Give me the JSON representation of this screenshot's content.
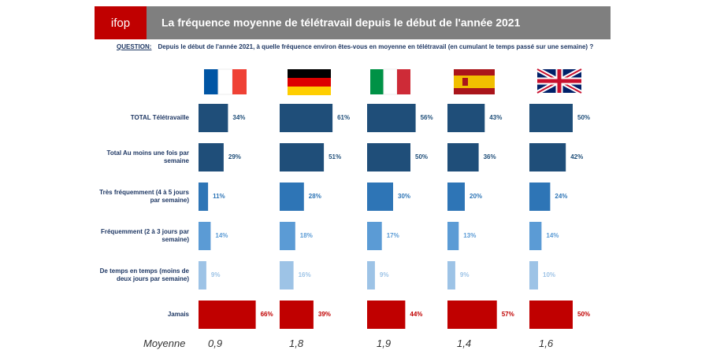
{
  "chart_data": {
    "type": "bar",
    "logo": "ifop",
    "title": "La fréquence moyenne de télétravail depuis le début de l'année 2021",
    "question_label": "QUESTION:",
    "question": "Depuis le début de l'année 2021, à quelle fréquence environ êtes-vous en moyenne en télétravail (en cumulant le temps passé sur une semaine) ?",
    "categories": [
      "TOTAL Télétravaille",
      "Total Au moins une fois par semaine",
      "Très fréquemment (4 à 5 jours par semaine)",
      "Fréquemment (2 à 3 jours par semaine)",
      "De temps en temps (moins de deux jours par semaine)",
      "Jamais"
    ],
    "colors": [
      "#1f4e79",
      "#1f4e79",
      "#2e75b6",
      "#5b9bd5",
      "#9dc3e6",
      "#c00000"
    ],
    "average_label": "Moyenne",
    "series": [
      {
        "values": [
          34,
          29,
          11,
          14,
          9,
          66
        ],
        "value_labels": [
          "34%",
          "29%",
          "11%",
          "14%",
          "9%",
          "66%"
        ],
        "average": 0.9,
        "average_label": "0,9"
      },
      {
        "values": [
          61,
          51,
          28,
          18,
          16,
          39
        ],
        "value_labels": [
          "61%",
          "51%",
          "28%",
          "18%",
          "16%",
          "39%"
        ],
        "average": 1.8,
        "average_label": "1,8"
      },
      {
        "values": [
          56,
          50,
          30,
          17,
          9,
          44
        ],
        "value_labels": [
          "56%",
          "50%",
          "30%",
          "17%",
          "9%",
          "44%"
        ],
        "average": 1.9,
        "average_label": "1,9"
      },
      {
        "values": [
          43,
          36,
          20,
          13,
          9,
          57
        ],
        "value_labels": [
          "43%",
          "36%",
          "20%",
          "13%",
          "9%",
          "57%"
        ],
        "average": 1.4,
        "average_label": "1,4"
      },
      {
        "values": [
          50,
          42,
          24,
          14,
          10,
          50
        ],
        "value_labels": [
          "50%",
          "42%",
          "24%",
          "14%",
          "10%",
          "50%"
        ],
        "average": 1.6,
        "average_label": "1,6"
      }
    ]
  }
}
